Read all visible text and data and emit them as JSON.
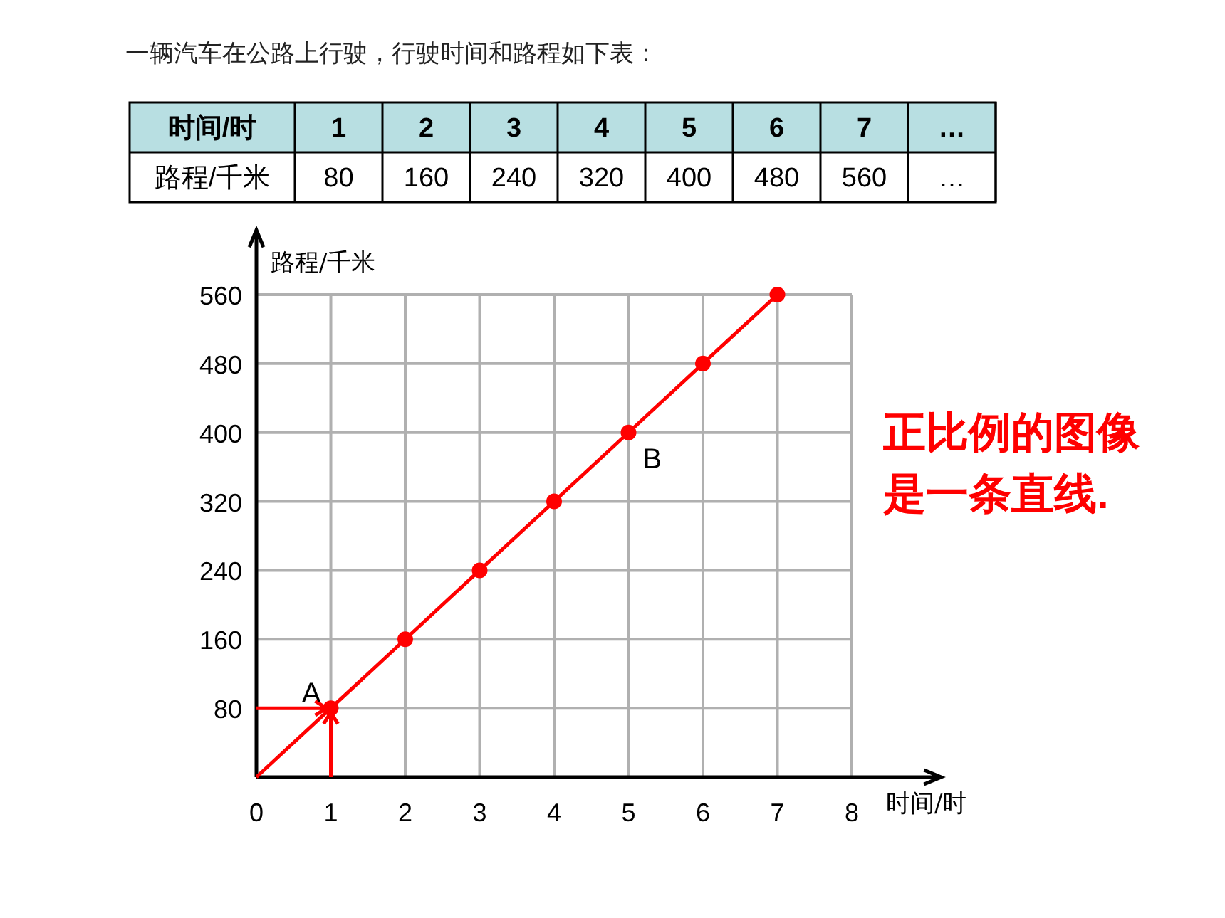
{
  "chart_data": {
    "type": "line",
    "title": "一辆汽车在公路上行驶，行驶时间和路程如下表：",
    "xlabel": "时间/时",
    "ylabel": "路程/千米",
    "series": [
      {
        "type": "line",
        "color": "#ff0000",
        "marker": "none",
        "x": [
          0,
          1,
          2,
          3,
          4,
          5,
          6,
          7
        ],
        "values": [
          0,
          80,
          160,
          240,
          320,
          400,
          480,
          560
        ]
      },
      {
        "type": "scatter",
        "color": "#ff0000",
        "marker": "circle",
        "x": [
          1,
          2,
          3,
          4,
          5,
          6,
          7
        ],
        "values": [
          80,
          160,
          240,
          320,
          400,
          480,
          560
        ]
      }
    ],
    "xlim": [
      0,
      9.2
    ],
    "ylim": [
      0,
      635
    ],
    "xticks": [
      0,
      1,
      2,
      3,
      4,
      5,
      6,
      7,
      8
    ],
    "yticks": [
      80,
      160,
      240,
      320,
      400,
      480,
      560
    ],
    "grid": true,
    "annotations": [
      "1",
      "2",
      "3",
      "4",
      "5",
      "6",
      "7",
      "…",
      "80",
      "160",
      "240",
      "320",
      "400",
      "480",
      "560",
      "…",
      "正比例的图像是一条直线.",
      {
        "text": "A",
        "x": 1,
        "y": 80
      },
      {
        "text": "B",
        "x": 5,
        "y": 400
      }
    ]
  }
}
